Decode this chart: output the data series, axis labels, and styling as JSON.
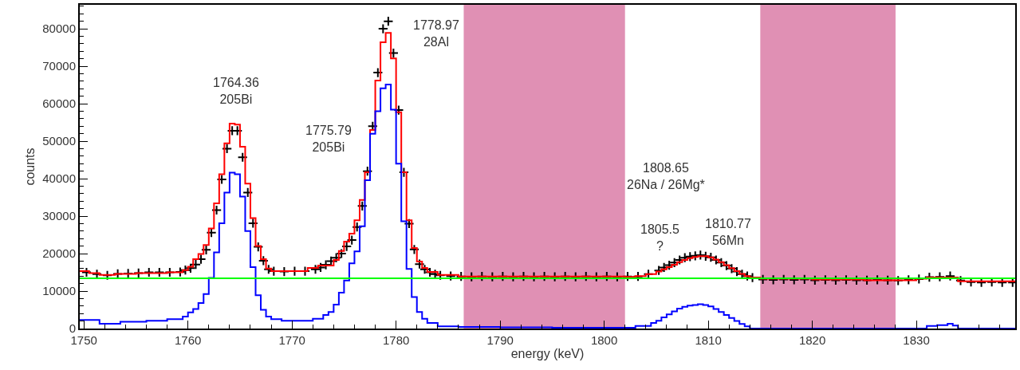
{
  "chart_data": {
    "type": "step",
    "xlabel": "energy (keV)",
    "ylabel": "counts",
    "xlim": [
      1749.6,
      1839.5
    ],
    "xticks": [
      1750,
      1760,
      1770,
      1780,
      1790,
      1800,
      1810,
      1820,
      1830
    ],
    "ylim": [
      0,
      86400
    ],
    "yticks": [
      0,
      10000,
      20000,
      30000,
      40000,
      50000,
      60000,
      70000,
      80000
    ],
    "grid": false,
    "series": [
      {
        "type": "scatter",
        "color": "#000000",
        "marker": "cross",
        "x": [
          1750.25,
          1751.25,
          1752.25,
          1753.25,
          1754.25,
          1755.25,
          1756.25,
          1757.25,
          1758.25,
          1759.25,
          1759.75,
          1760.25,
          1760.75,
          1761.25,
          1761.75,
          1762.25,
          1762.75,
          1763.25,
          1763.75,
          1764.25,
          1764.75,
          1765.25,
          1765.75,
          1766.25,
          1766.75,
          1767.25,
          1767.75,
          1768.25,
          1769.25,
          1770.25,
          1771.25,
          1772.25,
          1772.75,
          1773.25,
          1773.75,
          1774.25,
          1774.75,
          1775.25,
          1775.75,
          1776.25,
          1776.75,
          1777.25,
          1777.75,
          1778.25,
          1778.75,
          1779.25,
          1779.75,
          1780.25,
          1780.75,
          1781.25,
          1781.75,
          1782.25,
          1782.75,
          1783.25,
          1783.75,
          1784.25,
          1785.25,
          1786.25,
          1787.25,
          1788.25,
          1789.25,
          1790.25,
          1791.25,
          1792.25,
          1793.25,
          1794.25,
          1795.25,
          1796.25,
          1797.25,
          1798.25,
          1799.25,
          1800.25,
          1801.25,
          1802.25,
          1803.25,
          1804.25,
          1805.25,
          1805.75,
          1806.25,
          1806.75,
          1807.25,
          1807.75,
          1808.25,
          1808.75,
          1809.25,
          1809.75,
          1810.25,
          1810.75,
          1811.25,
          1811.75,
          1812.25,
          1812.75,
          1813.25,
          1813.75,
          1814.25,
          1815.25,
          1816.25,
          1817.25,
          1818.25,
          1819.25,
          1820.25,
          1821.25,
          1822.25,
          1823.25,
          1824.25,
          1825.25,
          1826.25,
          1827.25,
          1828.25,
          1829.25,
          1830.25,
          1831.25,
          1832.25,
          1833.25,
          1834.25,
          1835.25,
          1836.25,
          1837.25,
          1838.25,
          1839.25
        ],
        "values": [
          15000,
          14500,
          14200,
          14600,
          14700,
          14800,
          15000,
          15000,
          15000,
          15100,
          15600,
          16100,
          17100,
          18500,
          21000,
          25600,
          31600,
          39800,
          48000,
          52800,
          52800,
          45700,
          36300,
          28100,
          21800,
          18100,
          15800,
          15300,
          15200,
          15300,
          15300,
          15800,
          16300,
          17000,
          18000,
          18900,
          20000,
          21900,
          23600,
          27100,
          32700,
          42000,
          54000,
          68300,
          80000,
          82000,
          73500,
          58300,
          41700,
          28000,
          21100,
          17200,
          15800,
          15000,
          14500,
          14200,
          14000,
          13900,
          13800,
          13900,
          13800,
          13900,
          13800,
          13900,
          13800,
          13900,
          13800,
          13900,
          13800,
          13900,
          13800,
          13900,
          13800,
          13900,
          13900,
          14500,
          15500,
          16300,
          16900,
          17600,
          18300,
          18900,
          19200,
          19400,
          19600,
          19300,
          19000,
          18300,
          17600,
          16800,
          16000,
          15200,
          14500,
          14000,
          13600,
          13100,
          13000,
          13100,
          13000,
          13100,
          12900,
          13000,
          12900,
          13000,
          12900,
          12900,
          13000,
          12900,
          12800,
          13000,
          13200,
          13700,
          13800,
          14000,
          12800,
          12400,
          12300,
          12400,
          12300,
          12300
        ]
      },
      {
        "color": "#ff0000",
        "x": [
          1749.6,
          1750.5,
          1751.5,
          1753,
          1755,
          1758,
          1759.5,
          1760,
          1760.5,
          1761,
          1761.5,
          1762,
          1762.5,
          1763,
          1763.5,
          1764,
          1764.5,
          1765,
          1765.5,
          1766,
          1766.5,
          1767,
          1767.5,
          1768,
          1771.5,
          1772.5,
          1774,
          1774.5,
          1775,
          1775.5,
          1776,
          1776.5,
          1777,
          1777.5,
          1778,
          1778.5,
          1779,
          1779.5,
          1780,
          1780.5,
          1781,
          1781.5,
          1782,
          1782.5,
          1783,
          1784,
          1786,
          1802,
          1803,
          1804,
          1805,
          1805.5,
          1806,
          1806.5,
          1807,
          1807.5,
          1808,
          1808.5,
          1809,
          1810,
          1810.5,
          1811,
          1811.5,
          1812,
          1812.5,
          1813,
          1813.5,
          1814,
          1815,
          1820,
          1825,
          1830,
          1831,
          1834,
          1839.5
        ],
        "values": [
          15300,
          14800,
          14300,
          14600,
          14800,
          15000,
          15600,
          16500,
          18500,
          19900,
          22300,
          26700,
          33400,
          41200,
          49400,
          54700,
          54400,
          48500,
          38700,
          29500,
          22000,
          18500,
          16000,
          15300,
          16200,
          16800,
          18300,
          20700,
          23200,
          25300,
          28900,
          34300,
          41700,
          53000,
          66200,
          76400,
          78900,
          72100,
          57700,
          41700,
          28900,
          21500,
          17900,
          16200,
          15100,
          14300,
          13900,
          13800,
          14000,
          14500,
          15200,
          15800,
          16400,
          17000,
          17700,
          18300,
          18800,
          19100,
          19300,
          19000,
          18400,
          17700,
          16900,
          16100,
          15300,
          14600,
          14000,
          13600,
          13300,
          13100,
          12900,
          13300,
          13600,
          12600,
          12400
        ]
      },
      {
        "color": "#0000ff",
        "x": [
          1749.6,
          1751.5,
          1753.5,
          1756,
          1758,
          1759.5,
          1760,
          1760.5,
          1761,
          1761.5,
          1762,
          1762.5,
          1763,
          1763.5,
          1764,
          1764.5,
          1765,
          1765.5,
          1766,
          1766.5,
          1767,
          1767.5,
          1768,
          1769,
          1772,
          1773,
          1773.5,
          1774,
          1774.5,
          1775,
          1775.5,
          1776,
          1776.5,
          1777,
          1777.5,
          1778,
          1778.5,
          1779,
          1779.5,
          1780,
          1780.5,
          1781,
          1781.5,
          1782,
          1782.5,
          1783,
          1784,
          1786,
          1790,
          1795,
          1803,
          1804.5,
          1805,
          1805.5,
          1806,
          1806.5,
          1807,
          1807.5,
          1808,
          1808.5,
          1809,
          1809.5,
          1810,
          1810.5,
          1811,
          1811.5,
          1812,
          1812.5,
          1813,
          1813.5,
          1814,
          1831,
          1832,
          1833,
          1833.5,
          1834,
          1839.5
        ],
        "values": [
          2300,
          1300,
          1800,
          2100,
          2500,
          3200,
          4300,
          5200,
          6800,
          9200,
          13500,
          20300,
          28100,
          36300,
          41600,
          41200,
          35200,
          26000,
          16400,
          8900,
          5000,
          3200,
          2500,
          2100,
          2600,
          3600,
          4400,
          6400,
          9600,
          12800,
          17400,
          20600,
          27300,
          39600,
          52000,
          58000,
          64100,
          65100,
          58400,
          44000,
          28600,
          15900,
          8400,
          4400,
          2600,
          1500,
          600,
          400,
          300,
          200,
          700,
          1500,
          2100,
          3000,
          3800,
          4600,
          5300,
          5800,
          6100,
          6300,
          6500,
          6300,
          5900,
          5200,
          4400,
          3600,
          2800,
          2000,
          1200,
          600,
          0,
          700,
          900,
          1300,
          800,
          0,
          0
        ]
      }
    ],
    "ref_lines": [
      {
        "axis": "y",
        "value": 13400,
        "color": "#00ff00"
      }
    ],
    "bands": [
      {
        "axis": "x",
        "from": 1786.5,
        "to": 1802,
        "color": "#e090b4"
      },
      {
        "axis": "x",
        "from": 1815,
        "to": 1828,
        "color": "#e090b4"
      }
    ],
    "annotations": [
      "1764.36\n205Bi",
      "1775.79\n205Bi",
      "1778.97\n28Al",
      "1808.65\n26Na / 26Mg*",
      "1805.5\n?",
      "1810.77\n56Mn"
    ]
  }
}
